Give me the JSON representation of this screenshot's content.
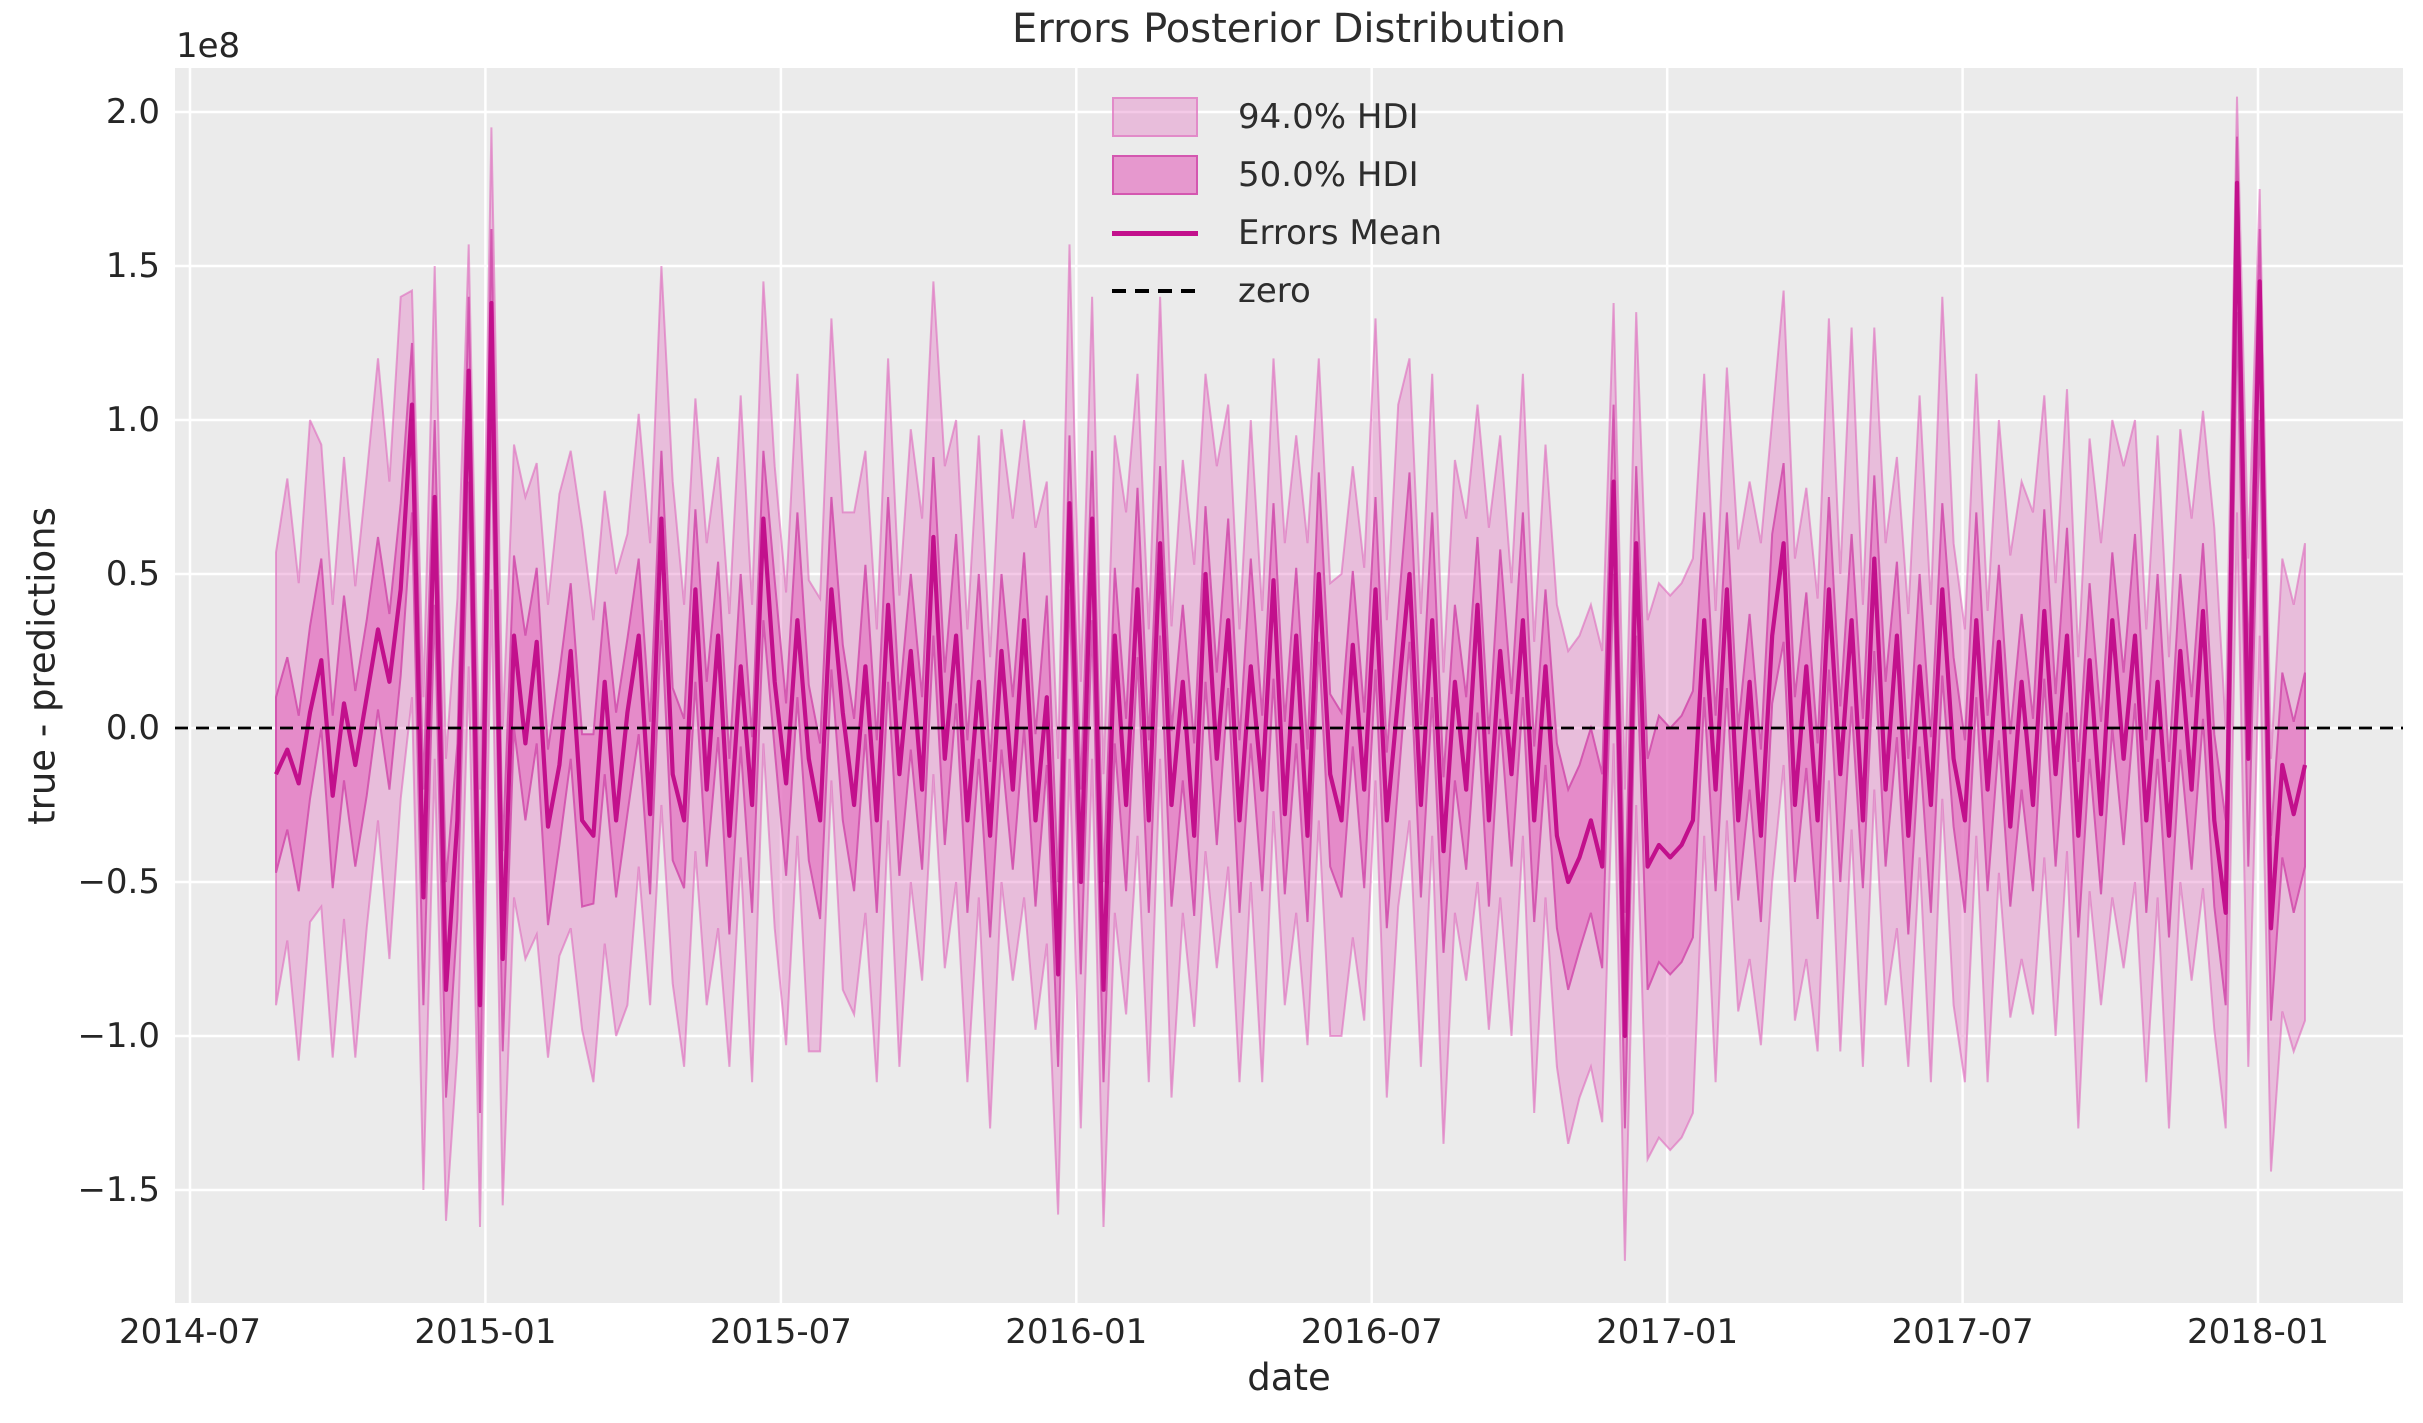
{
  "chart": {
    "title": "Errors Posterior Distribution",
    "xlabel": "date",
    "ylabel": "true - predictions",
    "y_offset_label": "1e8",
    "x_ticks": [
      "2014-07",
      "2015-01",
      "2015-07",
      "2016-01",
      "2016-07",
      "2017-01",
      "2017-07",
      "2018-01"
    ],
    "y_ticks": [
      "2.0",
      "1.5",
      "1.0",
      "0.5",
      "0.0",
      "−0.5",
      "−1.0",
      "−1.5"
    ],
    "legend": [
      {
        "label": "94.0% HDI",
        "type": "patch"
      },
      {
        "label": "50.0% HDI",
        "type": "patch"
      },
      {
        "label": "Errors Mean",
        "type": "line"
      },
      {
        "label": "zero",
        "type": "dashed-line"
      }
    ]
  },
  "colors": {
    "band_base": "#e377c2",
    "hdi94_fill": "rgba(227,119,194,0.40)",
    "hdi94_edge": "rgba(222,105,188,0.60)",
    "hdi50_fill": "rgba(227,119,194,0.72)",
    "hdi50_edge": "rgba(208,75,170,0.85)",
    "mean_line": "#c2108c",
    "zero_line": "#000000",
    "plot_bg": "#ebebeb",
    "grid": "#ffffff",
    "text": "#262626",
    "fig_bg": "#ffffff"
  },
  "chart_data": {
    "type": "line",
    "title": "Errors Posterior Distribution",
    "xlabel": "date",
    "ylabel": "true - predictions",
    "grid": true,
    "legend_position": "upper center",
    "y_scale_factor": 100000000.0,
    "y_units_note": "all series values are in units of 1e8 (true - predictions)",
    "x_start_date": "2014-08-24",
    "x_frequency": "weekly",
    "n_points": 180,
    "x_tick_labels": [
      "2014-07",
      "2015-01",
      "2015-07",
      "2016-01",
      "2016-07",
      "2017-01",
      "2017-07",
      "2018-01"
    ],
    "y_tick_values": [
      2.0,
      1.5,
      1.0,
      0.5,
      0.0,
      -0.5,
      -1.0,
      -1.5
    ],
    "ylim": [
      -1.86,
      2.15
    ],
    "series": [
      {
        "name": "Errors Mean",
        "type": "line",
        "values": [
          -0.15,
          -0.07,
          -0.18,
          0.05,
          0.22,
          -0.22,
          0.08,
          -0.12,
          0.1,
          0.32,
          0.15,
          0.45,
          1.05,
          -0.55,
          0.75,
          -0.85,
          -0.3,
          1.16,
          -0.9,
          1.38,
          -0.75,
          0.3,
          -0.05,
          0.28,
          -0.32,
          -0.12,
          0.25,
          -0.3,
          -0.35,
          0.15,
          -0.3,
          0.05,
          0.3,
          -0.28,
          0.68,
          -0.15,
          -0.3,
          0.45,
          -0.2,
          0.3,
          -0.35,
          0.2,
          -0.25,
          0.68,
          0.15,
          -0.18,
          0.35,
          -0.1,
          -0.3,
          0.45,
          0.05,
          -0.25,
          0.2,
          -0.3,
          0.4,
          -0.15,
          0.25,
          -0.2,
          0.62,
          -0.1,
          0.3,
          -0.3,
          0.15,
          -0.35,
          0.25,
          -0.2,
          0.35,
          -0.3,
          0.1,
          -0.8,
          0.73,
          -0.5,
          0.68,
          -0.85,
          0.3,
          -0.25,
          0.45,
          -0.3,
          0.6,
          -0.25,
          0.15,
          -0.35,
          0.5,
          -0.1,
          0.35,
          -0.3,
          0.2,
          -0.2,
          0.48,
          -0.28,
          0.3,
          -0.35,
          0.5,
          -0.15,
          -0.3,
          0.27,
          -0.2,
          0.45,
          -0.3,
          0.1,
          0.5,
          -0.25,
          0.35,
          -0.4,
          0.15,
          -0.2,
          0.4,
          -0.3,
          0.25,
          -0.15,
          0.35,
          -0.3,
          0.2,
          -0.35,
          -0.5,
          -0.42,
          -0.3,
          -0.45,
          0.8,
          -1.0,
          0.6,
          -0.45,
          -0.38,
          -0.42,
          -0.38,
          -0.3,
          0.35,
          -0.2,
          0.45,
          -0.3,
          0.15,
          -0.35,
          0.3,
          0.6,
          -0.25,
          0.2,
          -0.3,
          0.45,
          -0.15,
          0.35,
          -0.3,
          0.55,
          -0.2,
          0.3,
          -0.35,
          0.2,
          -0.25,
          0.45,
          -0.1,
          -0.3,
          0.35,
          -0.2,
          0.28,
          -0.32,
          0.15,
          -0.25,
          0.38,
          -0.15,
          0.3,
          -0.35,
          0.22,
          -0.28,
          0.35,
          -0.1,
          0.3,
          -0.3,
          0.15,
          -0.35,
          0.25,
          -0.2,
          0.38,
          -0.3,
          -0.6,
          1.77,
          -0.1,
          1.45,
          -0.65,
          -0.12,
          -0.28,
          -0.12
        ]
      },
      {
        "name": "50.0% HDI",
        "type": "band",
        "lower": [
          -0.47,
          -0.33,
          -0.53,
          -0.23,
          0.0,
          -0.52,
          -0.17,
          -0.45,
          -0.22,
          0.06,
          -0.2,
          0.17,
          0.7,
          -0.9,
          0.4,
          -1.2,
          -0.62,
          0.8,
          -1.25,
          1.0,
          -1.05,
          0.0,
          -0.3,
          -0.05,
          -0.64,
          -0.38,
          -0.1,
          -0.58,
          -0.57,
          -0.15,
          -0.55,
          -0.28,
          -0.02,
          -0.54,
          0.35,
          -0.43,
          -0.52,
          0.15,
          -0.45,
          -0.03,
          -0.67,
          -0.06,
          -0.6,
          0.35,
          -0.07,
          -0.48,
          0.1,
          -0.43,
          -0.62,
          0.19,
          -0.3,
          -0.53,
          -0.02,
          -0.6,
          0.15,
          -0.48,
          -0.07,
          -0.46,
          0.3,
          -0.38,
          0.08,
          -0.6,
          -0.1,
          -0.68,
          -0.07,
          -0.46,
          0.0,
          -0.58,
          -0.12,
          -1.1,
          0.45,
          -0.8,
          0.35,
          -1.15,
          -0.05,
          -0.53,
          0.23,
          -0.6,
          0.3,
          -0.58,
          -0.17,
          -0.61,
          0.15,
          -0.38,
          0.13,
          -0.6,
          -0.05,
          -0.53,
          0.16,
          -0.54,
          -0.05,
          -0.63,
          0.28,
          -0.45,
          -0.55,
          -0.06,
          -0.52,
          0.19,
          -0.65,
          -0.18,
          0.28,
          -0.55,
          0.1,
          -0.73,
          -0.17,
          -0.46,
          0.05,
          -0.58,
          0.03,
          -0.45,
          0.1,
          -0.63,
          -0.12,
          -0.65,
          -0.85,
          -0.72,
          -0.6,
          -0.78,
          0.5,
          -1.3,
          0.3,
          -0.85,
          -0.76,
          -0.8,
          -0.76,
          -0.68,
          0.1,
          -0.53,
          0.13,
          -0.56,
          -0.2,
          -0.63,
          0.08,
          0.28,
          -0.5,
          -0.13,
          -0.62,
          0.19,
          -0.5,
          0.07,
          -0.52,
          0.25,
          -0.45,
          -0.03,
          -0.67,
          -0.06,
          -0.6,
          0.17,
          -0.32,
          -0.6,
          0.1,
          -0.53,
          -0.04,
          -0.58,
          -0.2,
          -0.53,
          0.16,
          -0.45,
          0.05,
          -0.68,
          -0.1,
          -0.54,
          0.0,
          -0.38,
          0.08,
          -0.6,
          -0.1,
          -0.68,
          -0.07,
          -0.46,
          0.03,
          -0.58,
          -0.9,
          1.35,
          -0.45,
          1.0,
          -0.95,
          -0.42,
          -0.6,
          -0.45
        ],
        "upper": [
          0.1,
          0.23,
          0.04,
          0.33,
          0.55,
          0.04,
          0.43,
          0.12,
          0.35,
          0.62,
          0.37,
          0.73,
          1.25,
          -0.2,
          1.0,
          -0.5,
          -0.05,
          1.4,
          -0.55,
          1.62,
          -0.4,
          0.56,
          0.3,
          0.52,
          -0.07,
          0.18,
          0.47,
          -0.02,
          -0.02,
          0.41,
          0.05,
          0.29,
          0.55,
          0.02,
          0.9,
          0.13,
          0.03,
          0.71,
          0.15,
          0.54,
          -0.1,
          0.5,
          -0.03,
          0.9,
          0.48,
          0.08,
          0.7,
          0.14,
          -0.05,
          0.75,
          0.27,
          0.03,
          0.53,
          -0.04,
          0.75,
          0.09,
          0.5,
          0.1,
          0.88,
          0.18,
          0.63,
          -0.04,
          0.5,
          -0.11,
          0.5,
          0.1,
          0.57,
          -0.02,
          0.43,
          -0.5,
          0.95,
          -0.2,
          0.9,
          -0.5,
          0.52,
          0.03,
          0.78,
          -0.04,
          0.85,
          -0.01,
          0.4,
          -0.05,
          0.72,
          0.18,
          0.68,
          -0.04,
          0.55,
          0.04,
          0.73,
          0.02,
          0.52,
          -0.07,
          0.83,
          0.11,
          0.05,
          0.51,
          0.05,
          0.75,
          -0.08,
          0.38,
          0.83,
          0.01,
          0.7,
          -0.16,
          0.4,
          0.1,
          0.62,
          -0.02,
          0.58,
          0.11,
          0.7,
          -0.06,
          0.45,
          -0.05,
          -0.2,
          -0.12,
          0.0,
          -0.15,
          1.05,
          -0.6,
          0.85,
          -0.1,
          0.04,
          0.0,
          0.04,
          0.12,
          0.7,
          0.04,
          0.7,
          0.0,
          0.37,
          -0.07,
          0.63,
          0.86,
          0.1,
          0.44,
          -0.05,
          0.75,
          0.07,
          0.63,
          0.03,
          0.82,
          0.15,
          0.54,
          -0.1,
          0.5,
          -0.03,
          0.73,
          0.23,
          -0.04,
          0.7,
          0.04,
          0.53,
          -0.02,
          0.37,
          0.03,
          0.71,
          0.11,
          0.65,
          -0.11,
          0.47,
          0.02,
          0.57,
          0.18,
          0.63,
          -0.04,
          0.5,
          -0.11,
          0.5,
          0.1,
          0.6,
          -0.02,
          -0.3,
          1.92,
          0.2,
          1.62,
          -0.35,
          0.18,
          0.02,
          0.18
        ]
      },
      {
        "name": "94.0% HDI",
        "type": "band",
        "lower": [
          -0.9,
          -0.69,
          -1.08,
          -0.63,
          -0.58,
          -1.07,
          -0.62,
          -1.07,
          -0.65,
          -0.3,
          -0.75,
          -0.23,
          0.1,
          -1.5,
          -0.1,
          -1.6,
          -1.05,
          0.2,
          -1.62,
          0.45,
          -1.55,
          -0.55,
          -0.75,
          -0.67,
          -1.07,
          -0.74,
          -0.65,
          -0.98,
          -1.15,
          -0.7,
          -1.0,
          -0.9,
          -0.45,
          -0.9,
          -0.25,
          -0.83,
          -1.1,
          -0.4,
          -0.9,
          -0.65,
          -1.1,
          -0.42,
          -1.15,
          -0.05,
          -0.65,
          -1.03,
          -0.35,
          -1.05,
          -1.05,
          -0.17,
          -0.85,
          -0.93,
          -0.6,
          -1.15,
          -0.3,
          -1.1,
          -0.5,
          -0.82,
          -0.15,
          -0.78,
          -0.5,
          -1.15,
          -0.55,
          -1.3,
          -0.5,
          -0.82,
          -0.55,
          -0.98,
          -0.7,
          -1.58,
          -0.1,
          -1.3,
          -0.1,
          -1.62,
          -0.6,
          -0.93,
          -0.35,
          -1.15,
          -0.1,
          -1.2,
          -0.6,
          -0.97,
          -0.4,
          -0.78,
          -0.45,
          -1.15,
          -0.5,
          -1.15,
          -0.27,
          -0.9,
          -0.6,
          -1.03,
          -0.3,
          -1.0,
          -1.0,
          -0.68,
          -0.95,
          -0.17,
          -1.2,
          -0.58,
          -0.3,
          -1.1,
          -0.35,
          -1.35,
          -0.6,
          -0.82,
          -0.5,
          -0.98,
          -0.55,
          -1.0,
          -0.35,
          -1.25,
          -0.55,
          -1.1,
          -1.35,
          -1.2,
          -1.1,
          -1.28,
          -0.05,
          -1.73,
          -0.25,
          -1.4,
          -1.33,
          -1.37,
          -1.33,
          -1.25,
          -0.35,
          -1.15,
          -0.3,
          -0.92,
          -0.75,
          -1.03,
          -0.5,
          -0.12,
          -0.95,
          -0.75,
          -1.05,
          -0.17,
          -1.05,
          -0.33,
          -1.1,
          -0.2,
          -0.9,
          -0.65,
          -1.1,
          -0.42,
          -1.15,
          -0.23,
          -0.9,
          -1.15,
          -0.35,
          -1.15,
          -0.47,
          -0.94,
          -0.75,
          -0.93,
          -0.42,
          -1.0,
          -0.4,
          -1.3,
          -0.53,
          -0.9,
          -0.55,
          -0.78,
          -0.5,
          -1.15,
          -0.55,
          -1.3,
          -0.5,
          -0.82,
          -0.52,
          -0.98,
          -1.3,
          0.7,
          -1.1,
          0.3,
          -1.44,
          -0.92,
          -1.05,
          -0.95
        ],
        "upper": [
          0.57,
          0.81,
          0.47,
          1.0,
          0.92,
          0.4,
          0.88,
          0.46,
          0.82,
          1.2,
          0.8,
          1.4,
          1.42,
          0.1,
          1.5,
          -0.1,
          0.42,
          1.57,
          -0.2,
          1.95,
          0.0,
          0.92,
          0.75,
          0.86,
          0.4,
          0.76,
          0.9,
          0.65,
          0.35,
          0.77,
          0.5,
          0.63,
          1.02,
          0.6,
          1.5,
          0.8,
          0.4,
          1.07,
          0.6,
          0.88,
          0.37,
          1.08,
          0.4,
          1.45,
          0.85,
          0.44,
          1.15,
          0.48,
          0.42,
          1.33,
          0.7,
          0.7,
          0.9,
          0.32,
          1.2,
          0.43,
          0.97,
          0.68,
          1.45,
          0.85,
          1.0,
          0.32,
          0.95,
          0.23,
          0.97,
          0.68,
          1.0,
          0.65,
          0.8,
          -0.1,
          1.57,
          0.15,
          1.4,
          -0.15,
          0.95,
          0.7,
          1.15,
          0.32,
          1.4,
          0.33,
          0.87,
          0.53,
          1.15,
          0.85,
          1.05,
          0.32,
          1.0,
          0.38,
          1.2,
          0.6,
          0.95,
          0.6,
          1.2,
          0.47,
          0.5,
          0.85,
          0.52,
          1.33,
          0.35,
          1.05,
          1.2,
          0.37,
          1.15,
          0.18,
          0.87,
          0.68,
          1.05,
          0.65,
          0.95,
          0.47,
          1.15,
          0.28,
          0.92,
          0.4,
          0.25,
          0.3,
          0.4,
          0.25,
          1.38,
          -0.2,
          1.35,
          0.35,
          0.47,
          0.43,
          0.47,
          0.55,
          1.15,
          0.38,
          1.17,
          0.58,
          0.8,
          0.6,
          1.0,
          1.42,
          0.55,
          0.78,
          0.42,
          1.33,
          0.5,
          1.3,
          0.4,
          1.3,
          0.6,
          0.88,
          0.37,
          1.08,
          0.4,
          1.4,
          0.6,
          0.32,
          1.15,
          0.38,
          1.0,
          0.56,
          0.8,
          0.7,
          1.08,
          0.47,
          1.1,
          0.23,
          0.94,
          0.6,
          1.0,
          0.85,
          1.0,
          0.32,
          0.95,
          0.23,
          0.97,
          0.68,
          1.03,
          0.65,
          0.0,
          2.05,
          0.55,
          1.75,
          -0.1,
          0.55,
          0.4,
          0.6
        ]
      },
      {
        "name": "zero",
        "type": "hline",
        "value": 0
      }
    ]
  }
}
